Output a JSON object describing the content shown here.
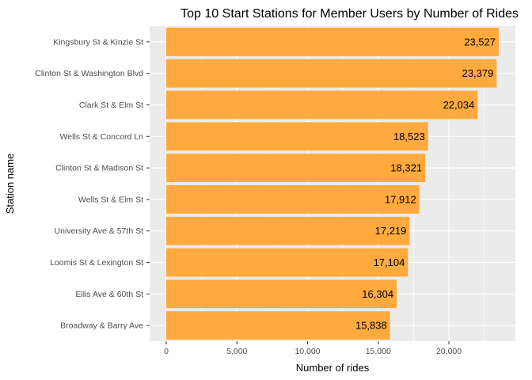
{
  "chart_data": {
    "type": "bar",
    "orientation": "horizontal",
    "title": "Top 10 Start Stations for Member Users by Number of Rides",
    "xlabel": "Number of rides",
    "ylabel": "Station name",
    "categories": [
      "Kingsbury St & Kinzie St",
      "Clinton St & Washington Blvd",
      "Clark St & Elm St",
      "Wells St & Concord Ln",
      "Clinton St & Madison St",
      "Wells St & Elm St",
      "University Ave & 57th St",
      "Loomis St & Lexington St",
      "Ellis Ave & 60th St",
      "Broadway & Barry Ave"
    ],
    "values": [
      23527,
      23379,
      22034,
      18523,
      18321,
      17912,
      17219,
      17104,
      16304,
      15838
    ],
    "value_labels": [
      "23,527",
      "23,379",
      "22,034",
      "18,523",
      "18,321",
      "17,912",
      "17,219",
      "17,104",
      "16,304",
      "15,838"
    ],
    "x_ticks": [
      0,
      5000,
      10000,
      15000,
      20000
    ],
    "x_tick_labels": [
      "0",
      "5,000",
      "10,000",
      "15,000",
      "20,000"
    ],
    "xlim": [
      -1176,
      24703
    ],
    "grid": true,
    "bar_color": "#FFAA3E",
    "panel_color": "#EBEBEB",
    "grid_color": "#FFFFFF"
  }
}
